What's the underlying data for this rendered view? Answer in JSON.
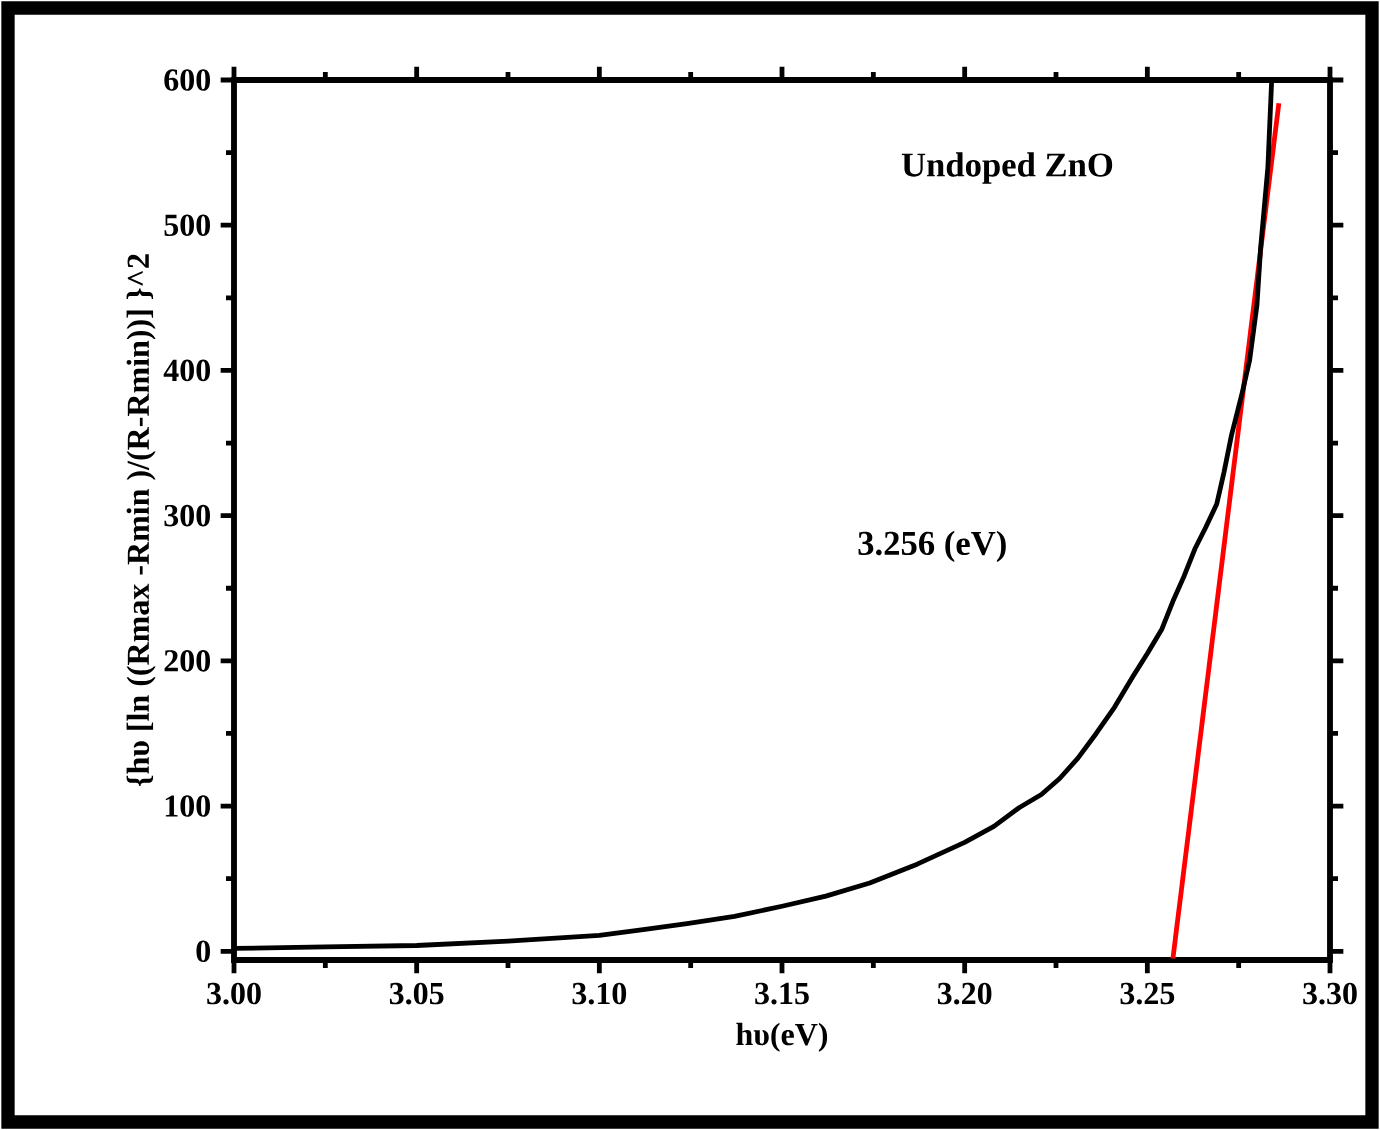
{
  "chart_data": {
    "type": "line",
    "xlabel": "hυ(eV)",
    "ylabel": "{hυ [ln ((Rmax -Rmin )/(R-Rmin))] }^2",
    "annotations": [
      "Undoped ZnO",
      "3.256 (eV)"
    ],
    "xlim": [
      3.0,
      3.3
    ],
    "ylim": [
      -6,
      600
    ],
    "xticks": [
      {
        "value": 3.0,
        "label": "3.00"
      },
      3.05,
      {
        "value": 3.1,
        "label": "3.10"
      },
      3.15,
      {
        "value": 3.2,
        "label": "3.20"
      },
      3.25,
      {
        "value": 3.3,
        "label": "3.30"
      }
    ],
    "yticks": [
      0,
      100,
      200,
      300,
      400,
      500,
      600
    ],
    "grid": false,
    "marker": "none",
    "line_style": "solid",
    "series": [
      {
        "color": "#000000",
        "x": [
          3.0,
          3.025,
          3.05,
          3.075,
          3.1,
          3.112,
          3.124,
          3.137,
          3.15,
          3.162,
          3.174,
          3.187,
          3.2,
          3.208,
          3.215,
          3.221,
          3.226,
          3.231,
          3.236,
          3.241,
          3.246,
          3.25,
          3.254,
          3.257,
          3.26,
          3.263,
          3.266,
          3.269,
          3.271,
          3.273,
          3.276,
          3.278,
          3.28,
          3.281,
          3.283,
          3.284
        ],
        "values": [
          2,
          3,
          4,
          7,
          11,
          15,
          19,
          24,
          31,
          38,
          47,
          60,
          75,
          86,
          99,
          108,
          119,
          133,
          150,
          168,
          189,
          205,
          222,
          241,
          258,
          277,
          292,
          308,
          330,
          355,
          385,
          407,
          445,
          484,
          540,
          598
        ]
      },
      {
        "color": "#ff0000",
        "x": [
          3.257,
          3.286
        ],
        "values": [
          -5,
          584
        ]
      }
    ]
  }
}
